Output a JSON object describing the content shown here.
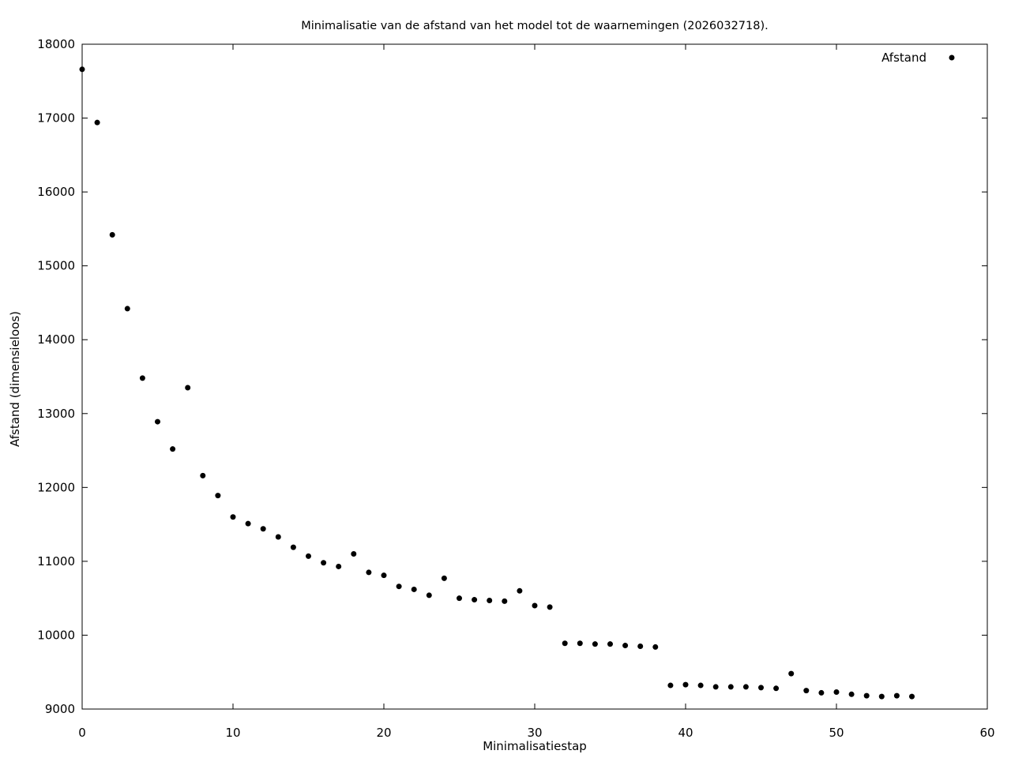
{
  "title": "Minimalisatie van de afstand van het model tot de waarnemingen (2026032718).",
  "legend": {
    "label": "Afstand",
    "marker": "filled-circle",
    "position": "top-right-inside"
  },
  "axes": {
    "xlabel": "Minimalisatiestap",
    "ylabel": "Afstand (dimensieloos)"
  },
  "colors": {
    "foreground": "#000000",
    "background": "#ffffff",
    "marker": "#000000"
  },
  "chart_data": {
    "type": "scatter",
    "title": "Minimalisatie van de afstand van het model tot de waarnemingen (2026032718).",
    "xlabel": "Minimalisatiestap",
    "ylabel": "Afstand (dimensieloos)",
    "xlim": [
      0,
      60
    ],
    "ylim": [
      9000,
      18000
    ],
    "xticks": [
      0,
      10,
      20,
      30,
      40,
      50,
      60
    ],
    "yticks": [
      9000,
      10000,
      11000,
      12000,
      13000,
      14000,
      15000,
      16000,
      17000,
      18000
    ],
    "grid": false,
    "ticks_mirrored": true,
    "legend_position": "top-right",
    "marker": "filled-circle",
    "marker_size": 3.5,
    "series": [
      {
        "name": "Afstand",
        "x": [
          0,
          1,
          2,
          3,
          4,
          5,
          6,
          7,
          8,
          9,
          10,
          11,
          12,
          13,
          14,
          15,
          16,
          17,
          18,
          19,
          20,
          21,
          22,
          23,
          24,
          25,
          26,
          27,
          28,
          29,
          30,
          31,
          32,
          33,
          34,
          35,
          36,
          37,
          38,
          39,
          40,
          41,
          42,
          43,
          44,
          45,
          46,
          47,
          48,
          49,
          50,
          51,
          52,
          53,
          54,
          55
        ],
        "y": [
          17660,
          16940,
          15420,
          14420,
          13480,
          12890,
          12520,
          13350,
          12160,
          11890,
          11600,
          11510,
          11440,
          11330,
          11190,
          11070,
          10980,
          10930,
          11100,
          10850,
          10810,
          10660,
          10620,
          10540,
          10770,
          10500,
          10480,
          10470,
          10460,
          10600,
          10400,
          10380,
          9890,
          9890,
          9880,
          9880,
          9860,
          9850,
          9840,
          9320,
          9330,
          9320,
          9300,
          9300,
          9300,
          9290,
          9280,
          9480,
          9250,
          9220,
          9230,
          9200,
          9180,
          9170,
          9180,
          9170
        ]
      }
    ]
  }
}
